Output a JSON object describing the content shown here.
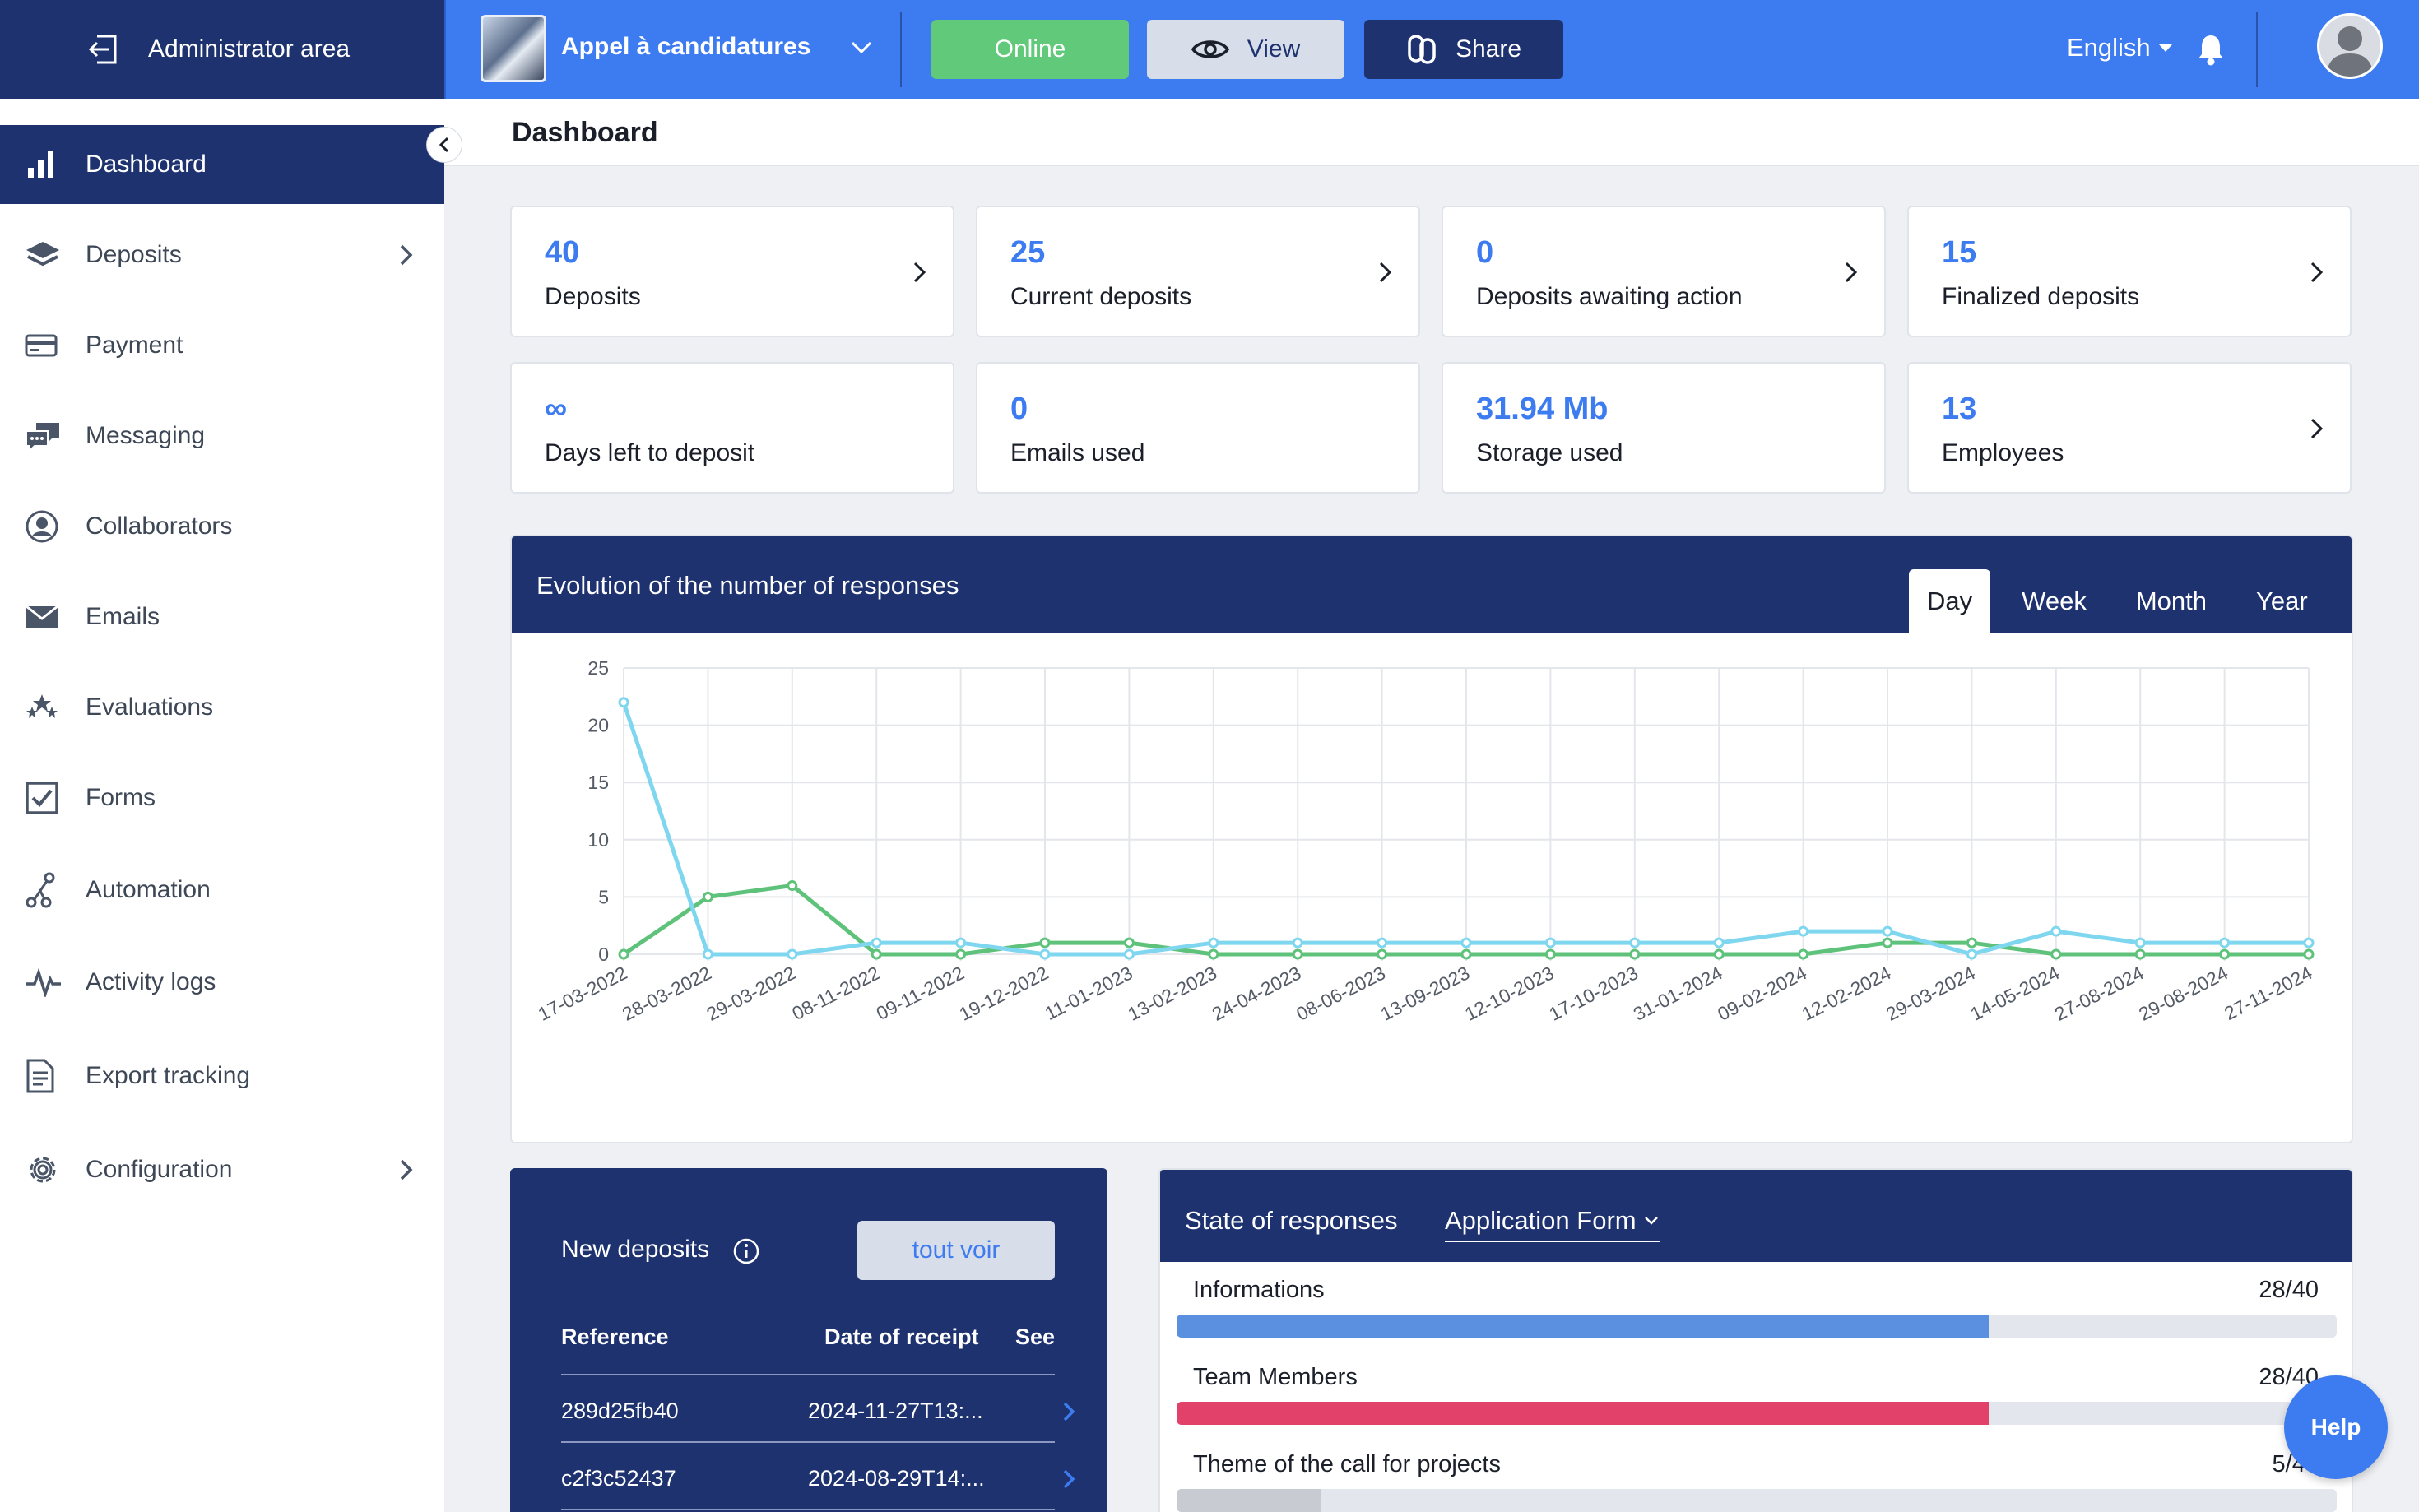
{
  "topbar": {
    "admin_label": "Administrator area",
    "project_name": "Appel à candidatures",
    "online_label": "Online",
    "view_label": "View",
    "share_label": "Share",
    "language": "English",
    "colors": {
      "bar": "#3d7bf0",
      "dark": "#1e3270",
      "online": "#61c97a"
    }
  },
  "sidebar": {
    "items": [
      {
        "label": "Dashboard",
        "icon": "bar-chart-icon",
        "active": true
      },
      {
        "label": "Deposits",
        "icon": "layers-icon",
        "has_submenu": true
      },
      {
        "label": "Payment",
        "icon": "credit-card-icon"
      },
      {
        "label": "Messaging",
        "icon": "chat-bubbles-icon"
      },
      {
        "label": "Collaborators",
        "icon": "user-circle-icon"
      },
      {
        "label": "Emails",
        "icon": "envelope-icon"
      },
      {
        "label": "Evaluations",
        "icon": "stars-icon"
      },
      {
        "label": "Forms",
        "icon": "checkbox-icon"
      },
      {
        "label": "Automation",
        "icon": "automation-icon"
      },
      {
        "label": "Activity logs",
        "icon": "pulse-icon"
      },
      {
        "label": "Export tracking",
        "icon": "document-icon"
      },
      {
        "label": "Configuration",
        "icon": "gear-icon",
        "has_submenu": true
      }
    ]
  },
  "page": {
    "title": "Dashboard"
  },
  "stats": [
    {
      "value": "40",
      "label": "Deposits",
      "link": true
    },
    {
      "value": "25",
      "label": "Current deposits",
      "link": true
    },
    {
      "value": "0",
      "label": "Deposits awaiting action",
      "link": true
    },
    {
      "value": "15",
      "label": "Finalized deposits",
      "link": true
    },
    {
      "value": "∞",
      "label": "Days left to deposit",
      "link": false
    },
    {
      "value": "0",
      "label": "Emails used",
      "link": false
    },
    {
      "value": "31.94 Mb",
      "label": "Storage used",
      "link": false
    },
    {
      "value": "13",
      "label": "Employees",
      "link": true
    }
  ],
  "chart_panel": {
    "title": "Evolution of the number of responses",
    "tabs": [
      "Day",
      "Week",
      "Month",
      "Year"
    ],
    "active_tab": "Day"
  },
  "chart_data": {
    "type": "line",
    "x": [
      "17-03-2022",
      "28-03-2022",
      "29-03-2022",
      "08-11-2022",
      "09-11-2022",
      "19-12-2022",
      "11-01-2023",
      "13-02-2023",
      "24-04-2023",
      "08-06-2023",
      "13-09-2023",
      "12-10-2023",
      "17-10-2023",
      "31-01-2024",
      "09-02-2024",
      "12-02-2024",
      "29-03-2024",
      "14-05-2024",
      "27-08-2024",
      "29-08-2024",
      "27-11-2024"
    ],
    "series": [
      {
        "color": "#7fd6ef",
        "values": [
          22,
          0,
          0,
          1,
          1,
          0,
          0,
          1,
          1,
          1,
          1,
          1,
          1,
          1,
          2,
          2,
          0,
          2,
          1,
          1,
          1
        ]
      },
      {
        "color": "#5ec27a",
        "values": [
          0,
          5,
          6,
          0,
          0,
          1,
          1,
          0,
          0,
          0,
          0,
          0,
          0,
          0,
          0,
          1,
          1,
          0,
          0,
          0,
          0
        ]
      }
    ],
    "ylim": [
      0,
      25
    ],
    "yticks": [
      0,
      5,
      10,
      15,
      20,
      25
    ],
    "grid": true
  },
  "new_deposits": {
    "title": "New deposits",
    "see_all": "tout voir",
    "columns": [
      "Reference",
      "Date of receipt",
      "See"
    ],
    "rows": [
      {
        "reference": "289d25fb40",
        "date": "2024-11-27T13:..."
      },
      {
        "reference": "c2f3c52437",
        "date": "2024-08-29T14:..."
      }
    ]
  },
  "state_of_responses": {
    "title": "State of responses",
    "selected_form": "Application Form",
    "items": [
      {
        "name": "Informations",
        "count": "28/40",
        "progress": 0.7,
        "color": "#5b8fe0"
      },
      {
        "name": "Team Members",
        "count": "28/40",
        "progress": 0.7,
        "color": "#e2426a"
      },
      {
        "name": "Theme of the call for projects",
        "count": "5/40",
        "progress": 0.125,
        "color": "#c8cbd2"
      }
    ]
  },
  "help_label": "Help"
}
